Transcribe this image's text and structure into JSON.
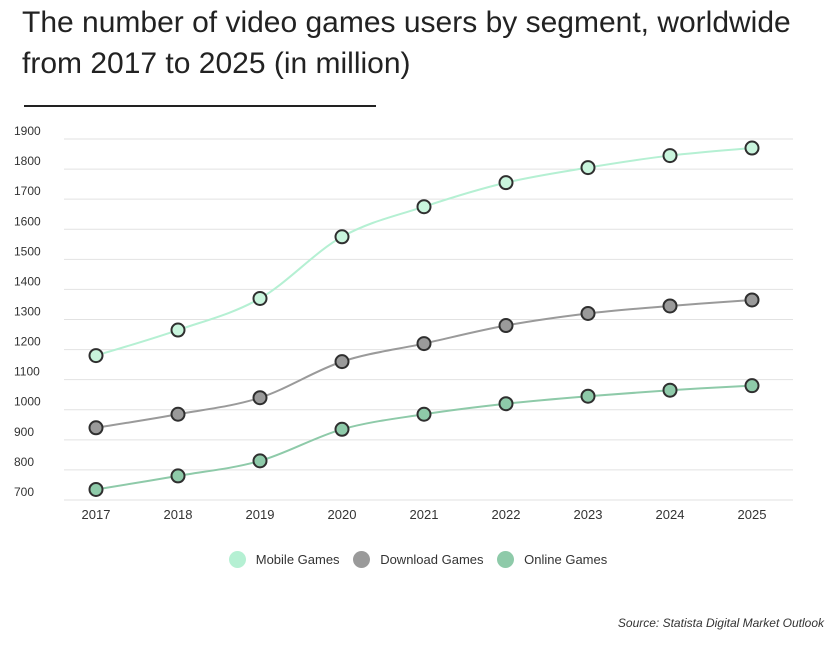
{
  "chart_data": {
    "type": "line",
    "title": "The number of video games users by segment, worldwide from 2017 to 2025 (in million)",
    "xlabel": "",
    "ylabel": "",
    "x": [
      "2017",
      "2018",
      "2019",
      "2020",
      "2021",
      "2022",
      "2023",
      "2024",
      "2025"
    ],
    "ylim": [
      680,
      1930
    ],
    "yticks": [
      700,
      800,
      900,
      1000,
      1100,
      1200,
      1300,
      1400,
      1500,
      1600,
      1700,
      1800,
      1900
    ],
    "grid": true,
    "legend_position": "bottom",
    "series": [
      {
        "name": "Mobile Games",
        "color": "#b5f0d3",
        "marker_fill": "#c9f5dd",
        "values": [
          1180,
          1265,
          1370,
          1575,
          1675,
          1755,
          1805,
          1845,
          1870
        ]
      },
      {
        "name": "Download Games",
        "color": "#9a9a9a",
        "marker_fill": "#9a9a9a",
        "values": [
          940,
          985,
          1040,
          1160,
          1220,
          1280,
          1320,
          1345,
          1365
        ]
      },
      {
        "name": "Online Games",
        "color": "#8ecaa9",
        "marker_fill": "#8ecaa9",
        "values": [
          735,
          780,
          830,
          935,
          985,
          1020,
          1045,
          1065,
          1080
        ]
      }
    ],
    "source": "Source: Statista Digital Market Outlook"
  }
}
